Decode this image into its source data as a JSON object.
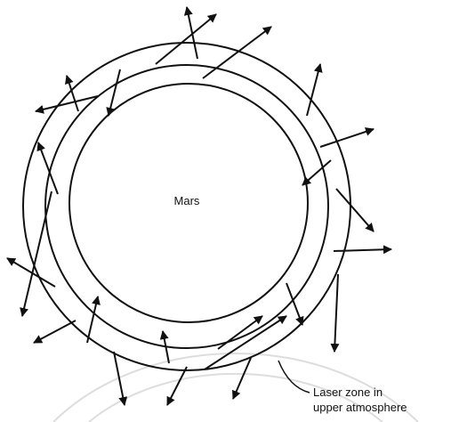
{
  "planet_label": "Mars",
  "zone_label": [
    "Laser zone in",
    "upper atmosphere"
  ]
}
